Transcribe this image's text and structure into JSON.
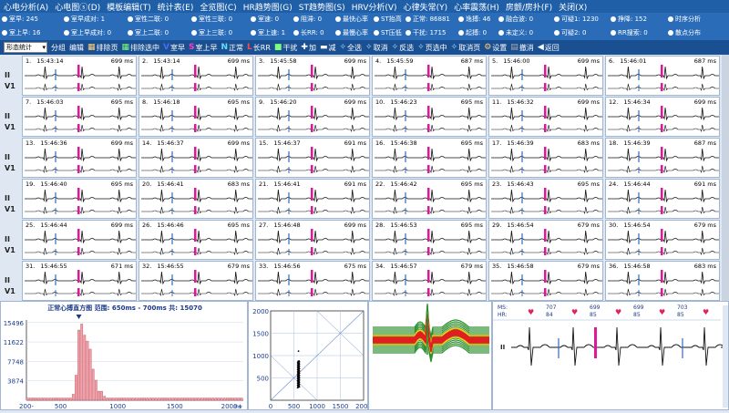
{
  "menu": [
    "心电分析(A)",
    "心电图ⓢ(D)",
    "模板编辑(T)",
    "统计表(E)",
    "全览图(C)",
    "HR趋势图(G)",
    "ST趋势图(S)",
    "HRV分析(V)",
    "心律失常(Y)",
    "心率震荡(H)",
    "房颤/房扑(F)",
    "关闭(X)"
  ],
  "filters": [
    [
      {
        "label": "室早: 245",
        "x": 2
      },
      {
        "label": "室早成对: 1",
        "x": 70
      },
      {
        "label": "室性二联: 0",
        "x": 140
      },
      {
        "label": "室性三联: 0",
        "x": 210
      },
      {
        "label": "室速: 0",
        "x": 275
      },
      {
        "label": "阻滞: 0",
        "x": 322
      },
      {
        "label": "最快心率",
        "x": 368
      },
      {
        "label": "ST抬高",
        "x": 410
      },
      {
        "label": "正常: 86881",
        "x": 445
      },
      {
        "label": "逸搏: 46",
        "x": 503
      },
      {
        "label": "融合波: 0",
        "x": 547
      },
      {
        "label": "可疑1: 1230",
        "x": 608
      },
      {
        "label": "挣降: 152",
        "x": 670
      },
      {
        "label": "时序分析",
        "x": 733
      }
    ],
    [
      {
        "label": "室上早: 16",
        "x": 2
      },
      {
        "label": "室上早成对: 0",
        "x": 70
      },
      {
        "label": "室上二联: 0",
        "x": 140
      },
      {
        "label": "室上三联: 0",
        "x": 210
      },
      {
        "label": "室上速: 1",
        "x": 275
      },
      {
        "label": "长RR: 0",
        "x": 322
      },
      {
        "label": "最慢心率",
        "x": 368
      },
      {
        "label": "ST压低",
        "x": 410
      },
      {
        "label": "干扰: 1715",
        "x": 445
      },
      {
        "label": "起搏: 0",
        "x": 503
      },
      {
        "label": "未定义: 0",
        "x": 547
      },
      {
        "label": "可疑2: 0",
        "x": 608
      },
      {
        "label": "RR搜索: 0",
        "x": 670
      },
      {
        "label": "散点分布",
        "x": 733
      }
    ]
  ],
  "toolbar": {
    "select": "形态统计",
    "items": [
      {
        "icon": "",
        "label": "分组",
        "color": "#ffffff"
      },
      {
        "icon": "",
        "label": "编辑",
        "color": "#ffffff"
      },
      {
        "icon": "▦",
        "label": "排除页",
        "color": "#ffd27a"
      },
      {
        "icon": "▦",
        "label": "排除选中",
        "color": "#7cff7c"
      },
      {
        "icon": "V",
        "label": "室早",
        "color": "#4a6bff"
      },
      {
        "icon": "S",
        "label": "室上早",
        "color": "#ff3cc8"
      },
      {
        "icon": "N",
        "label": "正常",
        "color": "#5fe0ff"
      },
      {
        "icon": "L",
        "label": "长RR",
        "color": "#ff4a4a"
      },
      {
        "icon": "",
        "label": "干扰",
        "color": "#7cff7c"
      },
      {
        "icon": "✚",
        "label": "加",
        "color": "#ffffff"
      },
      {
        "icon": "▬",
        "label": "减",
        "color": "#ffffff"
      },
      {
        "icon": "✧",
        "label": "全选",
        "color": "#9fe0ff"
      },
      {
        "icon": "✧",
        "label": "取消",
        "color": "#9fe0ff"
      },
      {
        "icon": "✧",
        "label": "反选",
        "color": "#9fe0ff"
      },
      {
        "icon": "✧",
        "label": "页选中",
        "color": "#9fe0ff"
      },
      {
        "icon": "✧",
        "label": "取消页",
        "color": "#9fe0ff"
      },
      {
        "icon": "⚙",
        "label": "设置",
        "color": "#ffd27a"
      },
      {
        "icon": "▤",
        "label": "撤消",
        "color": "#aaaaaa"
      },
      {
        "icon": "◀",
        "label": "返回",
        "color": "#ffffff"
      }
    ]
  },
  "leads": [
    "II",
    "V1"
  ],
  "beats": [
    {
      "n": "1.",
      "t": "15:43:14",
      "ms": "699 ms"
    },
    {
      "n": "2.",
      "t": "15:43:14",
      "ms": "699 ms"
    },
    {
      "n": "3.",
      "t": "15:45:58",
      "ms": "699 ms"
    },
    {
      "n": "4.",
      "t": "15:45:59",
      "ms": "687 ms"
    },
    {
      "n": "5.",
      "t": "15:46:00",
      "ms": "699 ms"
    },
    {
      "n": "6.",
      "t": "15:46:01",
      "ms": "687 ms"
    },
    {
      "n": "7.",
      "t": "15:46:03",
      "ms": "695 ms"
    },
    {
      "n": "8.",
      "t": "15:46:18",
      "ms": "695 ms"
    },
    {
      "n": "9.",
      "t": "15:46:20",
      "ms": "699 ms"
    },
    {
      "n": "10.",
      "t": "15:46:23",
      "ms": "695 ms"
    },
    {
      "n": "11.",
      "t": "15:46:32",
      "ms": "699 ms"
    },
    {
      "n": "12.",
      "t": "15:46:34",
      "ms": "699 ms"
    },
    {
      "n": "13.",
      "t": "15:46:36",
      "ms": "699 ms"
    },
    {
      "n": "14.",
      "t": "15:46:37",
      "ms": "699 ms"
    },
    {
      "n": "15.",
      "t": "15:46:37",
      "ms": "691 ms"
    },
    {
      "n": "16.",
      "t": "15:46:38",
      "ms": "695 ms"
    },
    {
      "n": "17.",
      "t": "15:46:39",
      "ms": "683 ms"
    },
    {
      "n": "18.",
      "t": "15:46:39",
      "ms": "687 ms"
    },
    {
      "n": "19.",
      "t": "15:46:40",
      "ms": "695 ms"
    },
    {
      "n": "20.",
      "t": "15:46:41",
      "ms": "683 ms"
    },
    {
      "n": "21.",
      "t": "15:46:41",
      "ms": "691 ms"
    },
    {
      "n": "22.",
      "t": "15:46:42",
      "ms": "695 ms"
    },
    {
      "n": "23.",
      "t": "15:46:43",
      "ms": "695 ms"
    },
    {
      "n": "24.",
      "t": "15:46:44",
      "ms": "691 ms"
    },
    {
      "n": "25.",
      "t": "15:46:44",
      "ms": "699 ms"
    },
    {
      "n": "26.",
      "t": "15:46:46",
      "ms": "695 ms"
    },
    {
      "n": "27.",
      "t": "15:46:48",
      "ms": "699 ms"
    },
    {
      "n": "28.",
      "t": "15:46:53",
      "ms": "695 ms"
    },
    {
      "n": "29.",
      "t": "15:46:54",
      "ms": "679 ms"
    },
    {
      "n": "30.",
      "t": "15:46:54",
      "ms": "679 ms"
    },
    {
      "n": "31.",
      "t": "15:46:55",
      "ms": "671 ms"
    },
    {
      "n": "32.",
      "t": "15:46:55",
      "ms": "679 ms"
    },
    {
      "n": "33.",
      "t": "15:46:56",
      "ms": "675 ms"
    },
    {
      "n": "34.",
      "t": "15:46:57",
      "ms": "679 ms"
    },
    {
      "n": "35.",
      "t": "15:46:58",
      "ms": "679 ms"
    },
    {
      "n": "36.",
      "t": "15:46:58",
      "ms": "683 ms"
    }
  ],
  "histogram": {
    "title": "正常心搏直方图  范围: 650ms - 700ms  共: 15070",
    "chart_data": {
      "type": "bar",
      "x": [
        200,
        225,
        250,
        275,
        300,
        325,
        350,
        375,
        400,
        425,
        450,
        475,
        500,
        525,
        550,
        575,
        600,
        625,
        650,
        675,
        700,
        725,
        750,
        775,
        800,
        825,
        850,
        875,
        900,
        925,
        950,
        975,
        1000,
        1025,
        1050,
        1075,
        1100,
        1125,
        1150,
        1175,
        1200,
        1225,
        1250,
        1275,
        1300,
        1325,
        1350,
        1375,
        1400,
        1425,
        1450,
        1475,
        1500,
        1525,
        1550,
        1575,
        1600,
        1625,
        1650,
        1675,
        1700,
        1725,
        1750,
        1775,
        1800,
        1825,
        1850,
        1875,
        1900,
        1925,
        1950,
        1975,
        2000,
        2025,
        2050,
        2075
      ],
      "values": [
        450,
        450,
        450,
        450,
        450,
        450,
        450,
        450,
        450,
        450,
        450,
        450,
        450,
        450,
        450,
        450,
        1200,
        5000,
        14000,
        15200,
        13000,
        11800,
        10200,
        6200,
        4000,
        1800,
        1800,
        800,
        450,
        450,
        450,
        450,
        450,
        450,
        450,
        450,
        450,
        450,
        450,
        450,
        450,
        450,
        450,
        450,
        450,
        450,
        450,
        450,
        450,
        450,
        450,
        450,
        450,
        450,
        450,
        450,
        450,
        450,
        450,
        450,
        450,
        450,
        450,
        450,
        450,
        450,
        450,
        450,
        450,
        450,
        450,
        450,
        450,
        450,
        450,
        450
      ],
      "yticks": [
        "15496",
        "11622",
        "7748",
        "3874"
      ],
      "ytick_vals": [
        15496,
        11622,
        7748,
        3874
      ],
      "xticks": [
        "200-",
        "500",
        "1000",
        "1500",
        "2000+"
      ],
      "xtick_vals": [
        200,
        500,
        1000,
        1500,
        2000
      ],
      "xunit": "ms",
      "xlim": [
        200,
        2100
      ],
      "ylim": [
        0,
        16000
      ],
      "marker": 650
    }
  },
  "scatter": {
    "chart_data": {
      "type": "scatter",
      "xlim": [
        0,
        2000
      ],
      "ylim": [
        0,
        2000
      ],
      "xticks": [
        "0",
        "500",
        "1000",
        "1500",
        "2000"
      ],
      "yticks": [
        "2000",
        "1500",
        "1000",
        "500"
      ],
      "cluster": {
        "x": 600,
        "y": [
          280,
          880
        ]
      },
      "outlier": {
        "x": 600,
        "y": 1100
      }
    }
  },
  "rstrip": {
    "ms_label": "MS:",
    "hr_label": "HR:",
    "lead": "II",
    "intervals": [
      {
        "ms": "707",
        "hr": "84"
      },
      {
        "ms": "699",
        "hr": "85"
      },
      {
        "ms": "699",
        "hr": "85"
      },
      {
        "ms": "703",
        "hr": "85"
      }
    ]
  }
}
